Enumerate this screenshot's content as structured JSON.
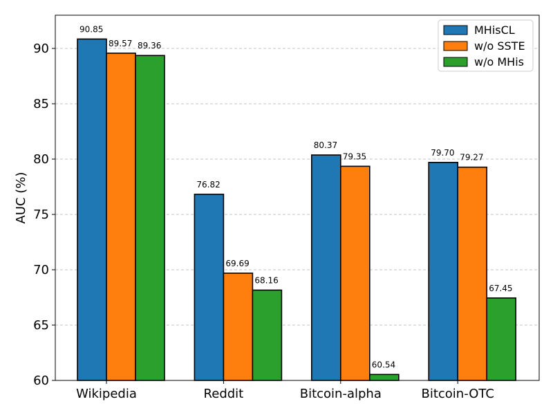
{
  "chart_data": {
    "type": "bar",
    "categories": [
      "Wikipedia",
      "Reddit",
      "Bitcoin-alpha",
      "Bitcoin-OTC"
    ],
    "series": [
      {
        "name": "MHisCL",
        "color": "#1f77b4",
        "values": [
          90.85,
          76.82,
          80.37,
          79.7
        ],
        "labels": [
          "90.85",
          "76.82",
          "80.37",
          "79.70"
        ]
      },
      {
        "name": "w/o SSTE",
        "color": "#ff7f0e",
        "values": [
          89.57,
          69.69,
          79.35,
          79.27
        ],
        "labels": [
          "89.57",
          "69.69",
          "79.35",
          "79.27"
        ]
      },
      {
        "name": "w/o MHis",
        "color": "#2ca02c",
        "values": [
          89.36,
          68.16,
          60.54,
          67.45
        ],
        "labels": [
          "89.36",
          "68.16",
          "60.54",
          "67.45"
        ]
      }
    ],
    "title": "",
    "xlabel": "",
    "ylabel": "AUC (%)",
    "ylim": [
      60,
      93
    ],
    "yticks": [
      60,
      65,
      70,
      75,
      80,
      85,
      90
    ],
    "grid": "y-dashed",
    "legend": "top-right"
  }
}
